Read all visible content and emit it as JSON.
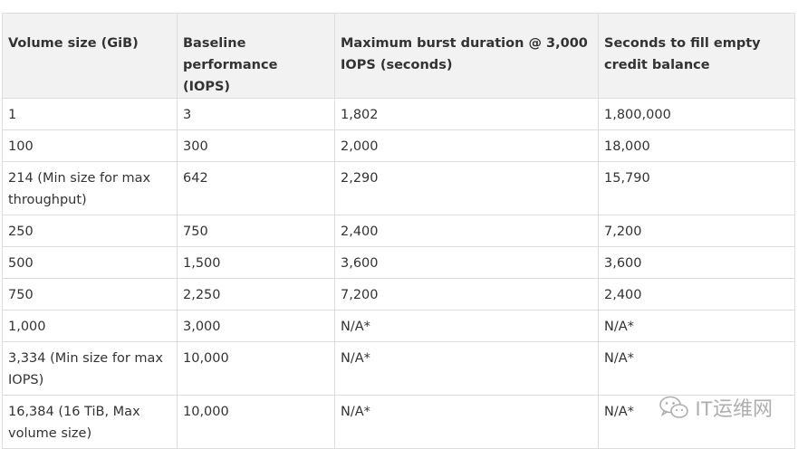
{
  "table": {
    "headers": [
      "Volume size (GiB)",
      "Baseline performance (IOPS)",
      "Maximum burst duration @ 3,000 IOPS (seconds)",
      "Seconds to fill empty credit balance"
    ],
    "rows": [
      [
        "1",
        "3",
        "1,802",
        "1,800,000"
      ],
      [
        "100",
        "300",
        "2,000",
        "18,000"
      ],
      [
        "214 (Min size for max throughput)",
        "642",
        "2,290",
        "15,790"
      ],
      [
        "250",
        "750",
        "2,400",
        "7,200"
      ],
      [
        "500",
        "1,500",
        "3,600",
        "3,600"
      ],
      [
        "750",
        "2,250",
        "7,200",
        "2,400"
      ],
      [
        "1,000",
        "3,000",
        "N/A*",
        "N/A*"
      ],
      [
        "3,334 (Min size for max IOPS)",
        "10,000",
        "N/A*",
        "N/A*"
      ],
      [
        "16,384 (16 TiB, Max volume size)",
        "10,000",
        "N/A*",
        "N/A*"
      ]
    ]
  },
  "watermark": {
    "text": "IT运维网",
    "icon": "wechat-icon"
  }
}
